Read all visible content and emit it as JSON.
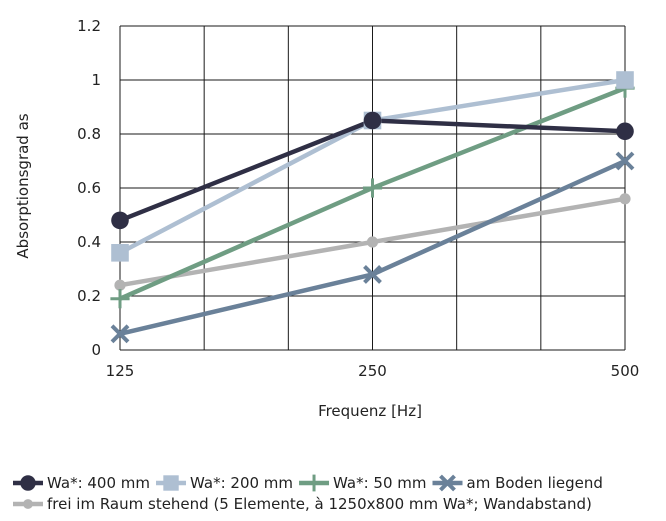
{
  "chart_data": {
    "type": "line",
    "title": "",
    "xlabel": "Frequenz [Hz]",
    "ylabel": "Absorptionsgrad as",
    "categories": [
      "125",
      "250",
      "500"
    ],
    "ylim": [
      0,
      1.2
    ],
    "yticks": [
      "0",
      "0.2",
      "0.4",
      "0.6",
      "0.8",
      "1",
      "1.2"
    ],
    "grid": true,
    "legend_position": "bottom",
    "series": [
      {
        "name": "Wa*: 400 mm",
        "values": [
          0.48,
          0.85,
          0.81
        ],
        "color": "#2f2f45",
        "marker": "circle"
      },
      {
        "name": "Wa*: 200 mm",
        "values": [
          0.36,
          0.85,
          1.0
        ],
        "color": "#aebfd2",
        "marker": "square"
      },
      {
        "name": "Wa*: 50 mm",
        "values": [
          0.19,
          0.6,
          0.97
        ],
        "color": "#6f9d83",
        "marker": "plus"
      },
      {
        "name": "am Boden liegend",
        "values": [
          0.06,
          0.28,
          0.7
        ],
        "color": "#6a8199",
        "marker": "x"
      },
      {
        "name": "frei im Raum stehend (5 Elemente, à 1250x800 mm Wa*; Wandabstand)",
        "values": [
          0.24,
          0.4,
          0.56
        ],
        "color": "#b3b3b3",
        "marker": "dash"
      }
    ]
  }
}
